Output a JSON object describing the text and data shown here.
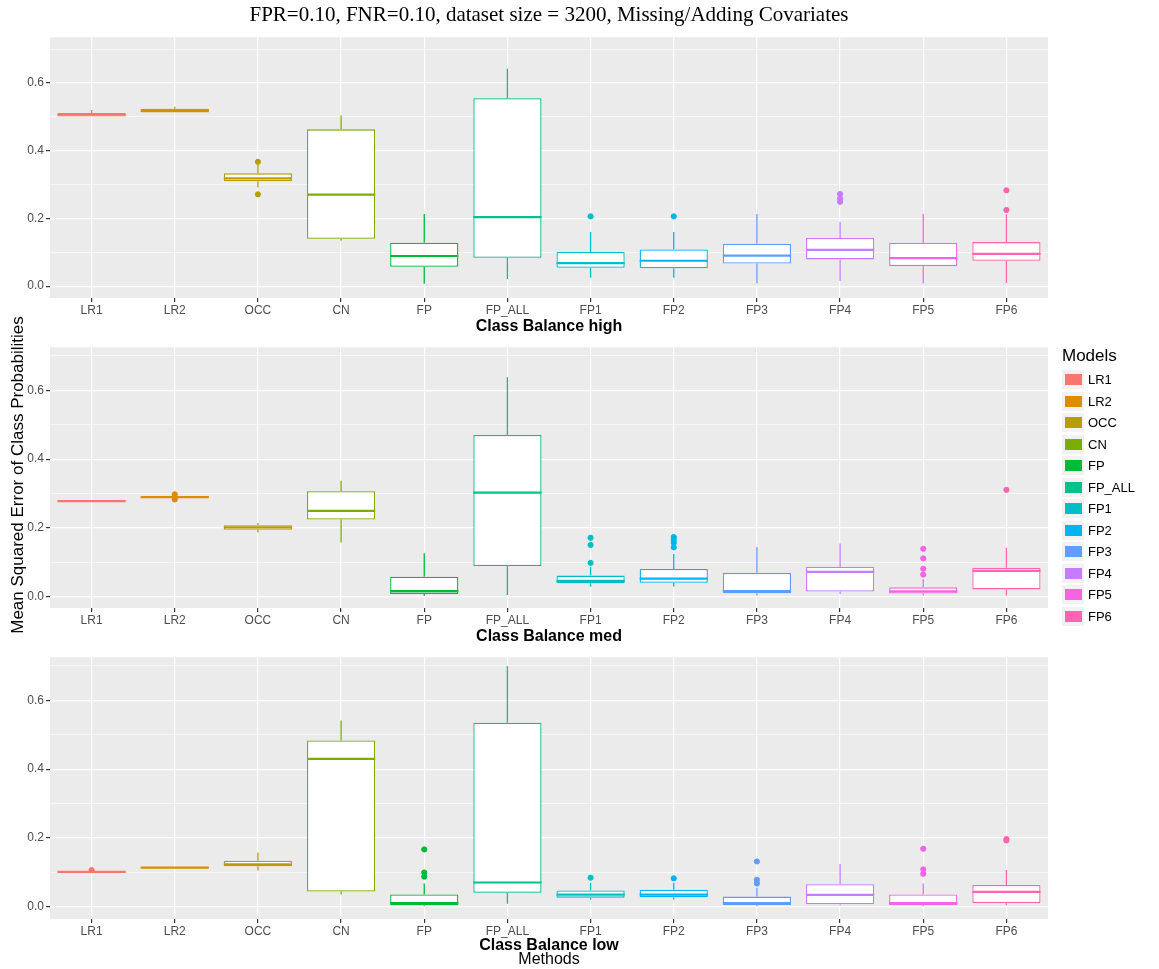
{
  "chart_data": [
    {
      "type": "box",
      "title": "FPR=0.10, FNR=0.10, dataset size = 3200, Missing/Adding Covariates",
      "xlabel": "Class Balance high",
      "categories": [
        "LR1",
        "LR2",
        "OCC",
        "CN",
        "FP",
        "FP_ALL",
        "FP1",
        "FP2",
        "FP3",
        "FP4",
        "FP5",
        "FP6"
      ],
      "series": [
        {
          "color": "#f8766d",
          "boxes": [
            {
              "low": 0.501,
              "q1": 0.501,
              "median": 0.506,
              "q3": 0.511,
              "high": 0.52
            },
            null,
            null,
            null,
            null,
            null,
            null,
            null,
            null,
            null,
            null,
            null
          ]
        },
        {
          "color": "#de8c00",
          "boxes": [
            null,
            {
              "low": 0.513,
              "q1": 0.513,
              "median": 0.518,
              "q3": 0.524,
              "high": 0.53
            },
            null,
            null,
            null,
            null,
            null,
            null,
            null,
            null,
            null,
            null
          ]
        },
        {
          "color": "#b79f00",
          "boxes": [
            null,
            null,
            {
              "low": 0.291,
              "q1": 0.31,
              "median": 0.318,
              "q3": 0.333,
              "high": 0.358,
              "outliers": [
                0.367,
                0.271
              ]
            },
            null,
            null,
            null,
            null,
            null,
            null,
            null,
            null,
            null
          ]
        },
        {
          "color": "#7cae00",
          "boxes": [
            null,
            null,
            null,
            {
              "low": 0.134,
              "q1": 0.14,
              "median": 0.27,
              "q3": 0.463,
              "high": 0.504
            },
            null,
            null,
            null,
            null,
            null,
            null,
            null,
            null
          ]
        },
        {
          "color": "#00ba38",
          "boxes": [
            null,
            null,
            null,
            null,
            {
              "low": 0.007,
              "q1": 0.057,
              "median": 0.089,
              "q3": 0.128,
              "high": 0.213
            },
            null,
            null,
            null,
            null,
            null,
            null,
            null
          ]
        },
        {
          "color": "#00c08b",
          "boxes": [
            null,
            null,
            null,
            null,
            null,
            {
              "low": 0.021,
              "q1": 0.084,
              "median": 0.204,
              "q3": 0.555,
              "high": 0.642
            },
            null,
            null,
            null,
            null,
            null,
            null
          ]
        },
        {
          "color": "#00bfc4",
          "boxes": [
            null,
            null,
            null,
            null,
            null,
            null,
            {
              "low": 0.025,
              "q1": 0.054,
              "median": 0.068,
              "q3": 0.101,
              "high": 0.16,
              "outliers": [
                0.206
              ]
            },
            null,
            null,
            null,
            null,
            null
          ]
        },
        {
          "color": "#00b4f0",
          "boxes": [
            null,
            null,
            null,
            null,
            null,
            null,
            null,
            {
              "low": 0.025,
              "q1": 0.053,
              "median": 0.075,
              "q3": 0.108,
              "high": 0.16,
              "outliers": [
                0.206
              ]
            },
            null,
            null,
            null,
            null
          ]
        },
        {
          "color": "#619cff",
          "boxes": [
            null,
            null,
            null,
            null,
            null,
            null,
            null,
            null,
            {
              "low": 0.008,
              "q1": 0.067,
              "median": 0.09,
              "q3": 0.125,
              "high": 0.213
            },
            null,
            null,
            null
          ]
        },
        {
          "color": "#c77cff",
          "boxes": [
            null,
            null,
            null,
            null,
            null,
            null,
            null,
            null,
            null,
            {
              "low": 0.015,
              "q1": 0.079,
              "median": 0.107,
              "q3": 0.142,
              "high": 0.19,
              "outliers": [
                0.272,
                0.259,
                0.249
              ]
            },
            null,
            null
          ]
        },
        {
          "color": "#f564e3",
          "boxes": [
            null,
            null,
            null,
            null,
            null,
            null,
            null,
            null,
            null,
            null,
            {
              "low": 0.008,
              "q1": 0.059,
              "median": 0.083,
              "q3": 0.128,
              "high": 0.214
            },
            null
          ]
        },
        {
          "color": "#ff64b0",
          "boxes": [
            null,
            null,
            null,
            null,
            null,
            null,
            null,
            null,
            null,
            null,
            null,
            {
              "low": 0.009,
              "q1": 0.075,
              "median": 0.095,
              "q3": 0.13,
              "high": 0.212,
              "outliers": [
                0.283,
                0.225
              ]
            }
          ]
        }
      ],
      "ylim": [
        -0.035,
        0.735
      ],
      "yticks": [
        {
          "value": 0,
          "label": "0.0"
        },
        {
          "value": 0.1,
          "label": null
        },
        0.2,
        {
          "value": 0.3,
          "label": null
        },
        0.4,
        {
          "value": 0.5,
          "label": null
        },
        0.6,
        {
          "value": 0.7,
          "label": null
        }
      ],
      "grid": true
    },
    {
      "type": "box",
      "xlabel": "Class Balance med",
      "ylabel": "Mean Squared Error of Class Probabilities",
      "legend": "right",
      "legend_title": "Models",
      "categories": [
        "LR1",
        "LR2",
        "OCC",
        "CN",
        "FP",
        "FP_ALL",
        "FP1",
        "FP2",
        "FP3",
        "FP4",
        "FP5",
        "FP6"
      ],
      "series": [
        {
          "name": "LR1",
          "color": "#f8766d",
          "boxes": [
            {
              "low": 0.276,
              "q1": 0.277,
              "median": 0.278,
              "q3": 0.279,
              "high": 0.281
            },
            null,
            null,
            null,
            null,
            null,
            null,
            null,
            null,
            null,
            null,
            null
          ]
        },
        {
          "name": "LR2",
          "color": "#de8c00",
          "boxes": [
            null,
            {
              "low": 0.288,
              "q1": 0.289,
              "median": 0.29,
              "q3": 0.291,
              "high": 0.292,
              "outliers": [
                0.298,
                0.283
              ]
            },
            null,
            null,
            null,
            null,
            null,
            null,
            null,
            null,
            null,
            null
          ]
        },
        {
          "name": "OCC",
          "color": "#b79f00",
          "boxes": [
            null,
            null,
            {
              "low": 0.187,
              "q1": 0.195,
              "median": 0.202,
              "q3": 0.208,
              "high": 0.215
            },
            null,
            null,
            null,
            null,
            null,
            null,
            null,
            null,
            null
          ]
        },
        {
          "name": "CN",
          "color": "#7cae00",
          "boxes": [
            null,
            null,
            null,
            {
              "low": 0.158,
              "q1": 0.225,
              "median": 0.25,
              "q3": 0.307,
              "high": 0.337
            },
            null,
            null,
            null,
            null,
            null,
            null,
            null,
            null
          ]
        },
        {
          "name": "FP",
          "color": "#00ba38",
          "boxes": [
            null,
            null,
            null,
            null,
            {
              "low": 0.003,
              "q1": 0.009,
              "median": 0.017,
              "q3": 0.059,
              "high": 0.127
            },
            null,
            null,
            null,
            null,
            null,
            null,
            null
          ]
        },
        {
          "name": "FP_ALL",
          "color": "#00c08b",
          "boxes": [
            null,
            null,
            null,
            null,
            null,
            {
              "low": 0.006,
              "q1": 0.09,
              "median": 0.303,
              "q3": 0.47,
              "high": 0.638
            },
            null,
            null,
            null,
            null,
            null,
            null
          ]
        },
        {
          "name": "FP1",
          "color": "#00bfc4",
          "boxes": [
            null,
            null,
            null,
            null,
            null,
            null,
            {
              "low": 0.03,
              "q1": 0.04,
              "median": 0.047,
              "q3": 0.062,
              "high": 0.088,
              "outliers": [
                0.172,
                0.151,
                0.099
              ]
            },
            null,
            null,
            null,
            null,
            null
          ]
        },
        {
          "name": "FP2",
          "color": "#00b4f0",
          "boxes": [
            null,
            null,
            null,
            null,
            null,
            null,
            null,
            {
              "low": 0.03,
              "q1": 0.041,
              "median": 0.053,
              "q3": 0.081,
              "high": 0.125,
              "outliers": [
                0.174,
                0.166,
                0.157,
                0.144
              ]
            },
            null,
            null,
            null,
            null
          ]
        },
        {
          "name": "FP3",
          "color": "#619cff",
          "boxes": [
            null,
            null,
            null,
            null,
            null,
            null,
            null,
            null,
            {
              "low": 0.004,
              "q1": 0.011,
              "median": 0.017,
              "q3": 0.07,
              "high": 0.145
            },
            null,
            null,
            null
          ]
        },
        {
          "name": "FP4",
          "color": "#c77cff",
          "boxes": [
            null,
            null,
            null,
            null,
            null,
            null,
            null,
            null,
            null,
            {
              "low": 0.009,
              "q1": 0.016,
              "median": 0.073,
              "q3": 0.088,
              "high": 0.155
            },
            null,
            null
          ]
        },
        {
          "name": "FP5",
          "color": "#f564e3",
          "boxes": [
            null,
            null,
            null,
            null,
            null,
            null,
            null,
            null,
            null,
            null,
            {
              "low": 0.004,
              "q1": 0.01,
              "median": 0.016,
              "q3": 0.028,
              "high": 0.052,
              "outliers": [
                0.14,
                0.112,
                0.082,
                0.065
              ]
            },
            null
          ]
        },
        {
          "name": "FP6",
          "color": "#ff64b0",
          "boxes": [
            null,
            null,
            null,
            null,
            null,
            null,
            null,
            null,
            null,
            null,
            null,
            {
              "low": 0.004,
              "q1": 0.022,
              "median": 0.076,
              "q3": 0.085,
              "high": 0.143,
              "outliers": [
                0.311
              ]
            }
          ]
        }
      ],
      "ylim": [
        -0.032,
        0.725
      ],
      "yticks": [
        {
          "value": 0,
          "label": "0.0"
        },
        {
          "value": 0.1,
          "label": null
        },
        0.2,
        {
          "value": 0.3,
          "label": null
        },
        0.4,
        {
          "value": 0.5,
          "label": null
        },
        0.6,
        {
          "value": 0.7,
          "label": null
        }
      ],
      "grid": true
    },
    {
      "type": "box",
      "xlabel": "Class Balance low",
      "annotations": [
        "Methods"
      ],
      "categories": [
        "LR1",
        "LR2",
        "OCC",
        "CN",
        "FP",
        "FP_ALL",
        "FP1",
        "FP2",
        "FP3",
        "FP4",
        "FP5",
        "FP6"
      ],
      "series": [
        {
          "color": "#f8766d",
          "boxes": [
            {
              "low": 0.101,
              "q1": 0.102,
              "median": 0.102,
              "q3": 0.103,
              "high": 0.104,
              "outliers": [
                0.107
              ]
            },
            null,
            null,
            null,
            null,
            null,
            null,
            null,
            null,
            null,
            null,
            null
          ]
        },
        {
          "color": "#de8c00",
          "boxes": [
            null,
            {
              "low": 0.112,
              "q1": 0.113,
              "median": 0.114,
              "q3": 0.115,
              "high": 0.116
            },
            null,
            null,
            null,
            null,
            null,
            null,
            null,
            null,
            null,
            null
          ]
        },
        {
          "color": "#b79f00",
          "boxes": [
            null,
            null,
            {
              "low": 0.106,
              "q1": 0.118,
              "median": 0.124,
              "q3": 0.134,
              "high": 0.158
            },
            null,
            null,
            null,
            null,
            null,
            null,
            null,
            null,
            null
          ]
        },
        {
          "color": "#7cae00",
          "boxes": [
            null,
            null,
            null,
            {
              "low": 0.036,
              "q1": 0.045,
              "median": 0.43,
              "q3": 0.483,
              "high": 0.541
            },
            null,
            null,
            null,
            null,
            null,
            null,
            null,
            null
          ]
        },
        {
          "color": "#00ba38",
          "boxes": [
            null,
            null,
            null,
            null,
            {
              "low": 0.002,
              "q1": 0.005,
              "median": 0.011,
              "q3": 0.036,
              "high": 0.068,
              "outliers": [
                0.167,
                0.1,
                0.088
              ]
            },
            null,
            null,
            null,
            null,
            null,
            null,
            null
          ]
        },
        {
          "color": "#00c08b",
          "boxes": [
            null,
            null,
            null,
            null,
            null,
            {
              "low": 0.009,
              "q1": 0.041,
              "median": 0.071,
              "q3": 0.535,
              "high": 0.699
            },
            null,
            null,
            null,
            null,
            null,
            null
          ]
        },
        {
          "color": "#00bfc4",
          "boxes": [
            null,
            null,
            null,
            null,
            null,
            null,
            {
              "low": 0.021,
              "q1": 0.027,
              "median": 0.036,
              "q3": 0.048,
              "high": 0.07,
              "outliers": [
                0.085
              ]
            },
            null,
            null,
            null,
            null,
            null
          ]
        },
        {
          "color": "#00b4f0",
          "boxes": [
            null,
            null,
            null,
            null,
            null,
            null,
            null,
            {
              "low": 0.021,
              "q1": 0.028,
              "median": 0.036,
              "q3": 0.05,
              "high": 0.07,
              "outliers": [
                0.083
              ]
            },
            null,
            null,
            null,
            null
          ]
        },
        {
          "color": "#619cff",
          "boxes": [
            null,
            null,
            null,
            null,
            null,
            null,
            null,
            null,
            {
              "low": 0.002,
              "q1": 0.006,
              "median": 0.011,
              "q3": 0.03,
              "high": 0.056,
              "outliers": [
                0.132,
                0.079,
                0.068
              ]
            },
            null,
            null,
            null
          ]
        },
        {
          "color": "#c77cff",
          "boxes": [
            null,
            null,
            null,
            null,
            null,
            null,
            null,
            null,
            null,
            {
              "low": 0.004,
              "q1": 0.008,
              "median": 0.035,
              "q3": 0.066,
              "high": 0.125
            },
            null,
            null
          ]
        },
        {
          "color": "#f564e3",
          "boxes": [
            null,
            null,
            null,
            null,
            null,
            null,
            null,
            null,
            null,
            null,
            {
              "low": 0.002,
              "q1": 0.006,
              "median": 0.011,
              "q3": 0.036,
              "high": 0.068,
              "outliers": [
                0.169,
                0.109,
                0.096
              ]
            },
            null
          ]
        },
        {
          "color": "#ff64b0",
          "boxes": [
            null,
            null,
            null,
            null,
            null,
            null,
            null,
            null,
            null,
            null,
            null,
            {
              "low": 0.005,
              "q1": 0.011,
              "median": 0.044,
              "q3": 0.064,
              "high": 0.107,
              "outliers": [
                0.197,
                0.193
              ]
            }
          ]
        }
      ],
      "ylim": [
        -0.035,
        0.725
      ],
      "yticks": [
        {
          "value": 0,
          "label": "0.0"
        },
        {
          "value": 0.1,
          "label": null
        },
        0.2,
        {
          "value": 0.3,
          "label": null
        },
        0.4,
        {
          "value": 0.5,
          "label": null
        },
        0.6,
        {
          "value": 0.7,
          "label": null
        }
      ],
      "grid": true
    }
  ]
}
